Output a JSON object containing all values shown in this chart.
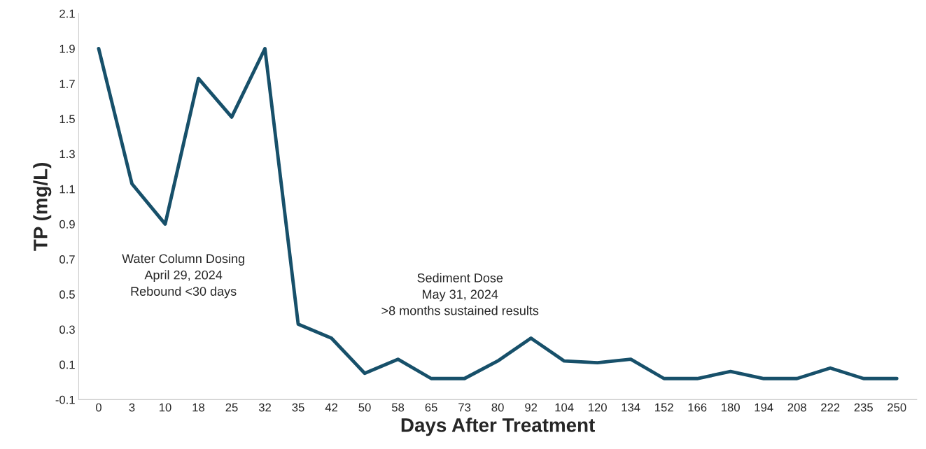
{
  "chart_data": {
    "type": "line",
    "xlabel": "Days After Treatment",
    "ylabel": "TP (mg/L)",
    "categories": [
      "0",
      "3",
      "10",
      "18",
      "25",
      "32",
      "35",
      "42",
      "50",
      "58",
      "65",
      "73",
      "80",
      "92",
      "104",
      "120",
      "134",
      "152",
      "166",
      "180",
      "194",
      "208",
      "222",
      "235",
      "250"
    ],
    "series": [
      {
        "color": "#17506a",
        "values": [
          1.9,
          1.13,
          0.9,
          1.73,
          1.51,
          1.9,
          0.33,
          0.25,
          0.05,
          0.13,
          0.02,
          0.02,
          0.12,
          0.25,
          0.12,
          0.11,
          0.13,
          0.02,
          0.02,
          0.06,
          0.02,
          0.02,
          0.08,
          0.02,
          0.02
        ]
      }
    ],
    "ylim": [
      -0.1,
      2.1
    ],
    "yticks": [
      {
        "value": -0.1,
        "label": "-0.1"
      },
      0.1,
      0.3,
      0.5,
      0.7,
      0.9,
      1.1,
      1.3,
      1.5,
      1.7,
      1.9,
      2.1
    ],
    "annotations": [
      "Water Column Dosing\nApril 29, 2024\nRebound <30 days",
      "Sediment Dose\nMay 31, 2024\n>8 months sustained results"
    ],
    "grid": false,
    "legend": false,
    "marker": "none",
    "line_style": "solid"
  }
}
